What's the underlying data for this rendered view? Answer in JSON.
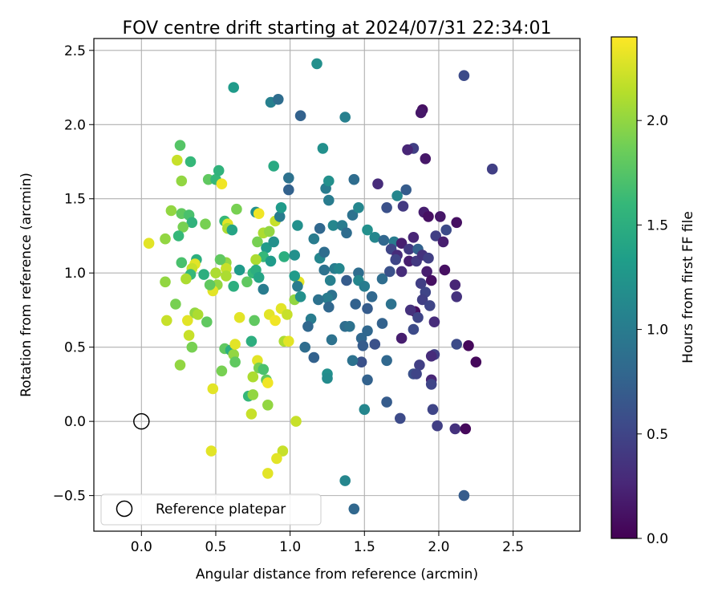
{
  "chart_data": {
    "type": "scatter",
    "title": "FOV centre drift starting at 2024/07/31 22:34:01",
    "xlabel": "Angular distance from reference (arcmin)",
    "ylabel": "Rotation from reference (arcmin)",
    "xlim": [
      -0.32,
      2.95
    ],
    "ylim": [
      -0.74,
      2.58
    ],
    "x_ticks": [
      0.0,
      0.5,
      1.0,
      1.5,
      2.0,
      2.5
    ],
    "x_tick_labels": [
      "0.0",
      "0.5",
      "1.0",
      "1.5",
      "2.0",
      "2.5"
    ],
    "y_ticks": [
      -0.5,
      0.0,
      0.5,
      1.0,
      1.5,
      2.0,
      2.5
    ],
    "y_tick_labels": [
      "−0.5",
      "0.0",
      "0.5",
      "1.0",
      "1.5",
      "2.0",
      "2.5"
    ],
    "grid": true,
    "legend": {
      "position": "lower-left",
      "entries": [
        {
          "label": "Reference platepar",
          "marker": "open-circle"
        }
      ]
    },
    "reference_point": {
      "x": 0.0,
      "y": 0.0
    },
    "colorbar": {
      "label": "Hours from first FF file",
      "colormap": "viridis",
      "range": [
        0.0,
        2.4
      ],
      "ticks": [
        0.0,
        0.5,
        1.0,
        1.5,
        2.0
      ],
      "tick_labels": [
        "0.0",
        "0.5",
        "1.0",
        "1.5",
        "2.0"
      ],
      "colors": [
        "#440154",
        "#482878",
        "#3e4989",
        "#31688e",
        "#26828e",
        "#1f9e89",
        "#35b779",
        "#6ece58",
        "#b5de2b",
        "#fde725"
      ]
    },
    "points": [
      [
        0.62,
        2.25,
        1.3
      ],
      [
        0.87,
        2.15,
        1.05
      ],
      [
        0.92,
        2.17,
        0.85
      ],
      [
        1.18,
        2.41,
        1.2
      ],
      [
        1.07,
        2.06,
        0.75
      ],
      [
        1.37,
        2.05,
        1.05
      ],
      [
        1.89,
        2.1,
        0.1
      ],
      [
        1.88,
        2.08,
        0.15
      ],
      [
        2.17,
        2.33,
        0.55
      ],
      [
        2.36,
        1.7,
        0.45
      ],
      [
        1.83,
        1.84,
        0.45
      ],
      [
        1.79,
        1.83,
        0.25
      ],
      [
        1.91,
        1.77,
        0.15
      ],
      [
        1.22,
        1.84,
        1.2
      ],
      [
        0.26,
        1.86,
        1.75
      ],
      [
        0.24,
        1.76,
        2.2
      ],
      [
        0.33,
        1.75,
        1.6
      ],
      [
        0.27,
        1.62,
        2.0
      ],
      [
        0.45,
        1.63,
        1.8
      ],
      [
        0.5,
        1.63,
        1.6
      ],
      [
        0.52,
        1.69,
        1.55
      ],
      [
        0.54,
        1.6,
        2.35
      ],
      [
        0.89,
        1.72,
        1.45
      ],
      [
        0.99,
        1.64,
        0.9
      ],
      [
        0.99,
        1.56,
        0.75
      ],
      [
        1.24,
        1.57,
        1.0
      ],
      [
        1.26,
        1.62,
        1.2
      ],
      [
        1.43,
        1.63,
        0.85
      ],
      [
        1.59,
        1.6,
        0.3
      ],
      [
        1.72,
        1.52,
        1.1
      ],
      [
        1.78,
        1.56,
        0.7
      ],
      [
        1.76,
        1.45,
        0.4
      ],
      [
        1.26,
        1.49,
        1.0
      ],
      [
        1.05,
        1.32,
        1.2
      ],
      [
        1.29,
        1.32,
        1.1
      ],
      [
        1.35,
        1.32,
        1.0
      ],
      [
        1.38,
        1.27,
        0.85
      ],
      [
        1.42,
        1.39,
        0.9
      ],
      [
        1.46,
        1.44,
        1.1
      ],
      [
        1.52,
        1.29,
        1.2
      ],
      [
        1.57,
        1.24,
        1.1
      ],
      [
        1.65,
        1.44,
        0.6
      ],
      [
        1.63,
        1.22,
        0.8
      ],
      [
        1.7,
        1.21,
        1.0
      ],
      [
        1.68,
        1.16,
        0.5
      ],
      [
        1.72,
        1.12,
        0.3
      ],
      [
        1.75,
        1.2,
        0.2
      ],
      [
        1.8,
        1.16,
        0.4
      ],
      [
        1.83,
        1.24,
        0.25
      ],
      [
        1.86,
        1.16,
        0.75
      ],
      [
        1.9,
        1.41,
        0.2
      ],
      [
        1.93,
        1.38,
        0.1
      ],
      [
        2.01,
        1.38,
        0.15
      ],
      [
        1.98,
        1.25,
        0.45
      ],
      [
        2.05,
        1.29,
        0.55
      ],
      [
        2.03,
        1.21,
        0.2
      ],
      [
        2.12,
        1.34,
        0.1
      ],
      [
        0.2,
        1.42,
        2.0
      ],
      [
        0.27,
        1.4,
        1.8
      ],
      [
        0.32,
        1.39,
        1.7
      ],
      [
        0.34,
        1.34,
        1.55
      ],
      [
        0.28,
        1.31,
        1.9
      ],
      [
        0.25,
        1.25,
        1.6
      ],
      [
        0.16,
        1.23,
        2.0
      ],
      [
        0.05,
        1.2,
        2.3
      ],
      [
        0.43,
        1.33,
        1.9
      ],
      [
        0.56,
        1.35,
        1.6
      ],
      [
        0.58,
        1.33,
        2.3
      ],
      [
        0.58,
        1.3,
        2.1
      ],
      [
        0.61,
        1.29,
        1.4
      ],
      [
        0.64,
        1.43,
        1.9
      ],
      [
        0.77,
        1.41,
        1.2
      ],
      [
        0.79,
        1.4,
        2.35
      ],
      [
        0.78,
        1.21,
        1.9
      ],
      [
        0.82,
        1.27,
        2.1
      ],
      [
        0.84,
        1.17,
        1.3
      ],
      [
        0.86,
        1.28,
        2.0
      ],
      [
        0.9,
        1.35,
        2.2
      ],
      [
        0.93,
        1.38,
        1.0
      ],
      [
        0.94,
        1.44,
        1.3
      ],
      [
        0.89,
        1.21,
        1.2
      ],
      [
        0.96,
        1.11,
        1.5
      ],
      [
        0.82,
        1.11,
        1.6
      ],
      [
        0.87,
        1.08,
        1.3
      ],
      [
        0.77,
        1.09,
        2.1
      ],
      [
        0.75,
        1.0,
        1.6
      ],
      [
        0.77,
        1.02,
        1.5
      ],
      [
        0.79,
        0.97,
        1.4
      ],
      [
        0.82,
        0.89,
        1.0
      ],
      [
        0.71,
        0.94,
        1.8
      ],
      [
        0.66,
        1.02,
        1.3
      ],
      [
        0.62,
        0.91,
        1.5
      ],
      [
        0.57,
        1.07,
        2.0
      ],
      [
        0.57,
        1.03,
        2.2
      ],
      [
        0.57,
        0.98,
        2.1
      ],
      [
        0.53,
        1.09,
        1.8
      ],
      [
        0.5,
        1.0,
        2.1
      ],
      [
        0.51,
        0.92,
        2.0
      ],
      [
        0.48,
        0.88,
        2.3
      ],
      [
        0.46,
        0.92,
        1.8
      ],
      [
        0.42,
        0.99,
        1.5
      ],
      [
        0.37,
        1.09,
        1.5
      ],
      [
        0.36,
        1.06,
        2.3
      ],
      [
        0.34,
        1.03,
        2.2
      ],
      [
        0.33,
        0.99,
        1.6
      ],
      [
        0.3,
        0.96,
        2.1
      ],
      [
        0.27,
        1.07,
        1.7
      ],
      [
        0.16,
        0.94,
        2.0
      ],
      [
        0.23,
        0.79,
        1.9
      ],
      [
        0.36,
        0.73,
        2.0
      ],
      [
        0.38,
        0.72,
        2.1
      ],
      [
        0.44,
        0.67,
        1.8
      ],
      [
        0.31,
        0.68,
        2.3
      ],
      [
        0.17,
        0.68,
        2.2
      ],
      [
        0.32,
        0.58,
        2.2
      ],
      [
        0.34,
        0.5,
        1.9
      ],
      [
        0.26,
        0.38,
        2.0
      ],
      [
        0.56,
        0.49,
        1.8
      ],
      [
        0.6,
        0.48,
        1.5
      ],
      [
        0.62,
        0.45,
        2.0
      ],
      [
        0.63,
        0.52,
        2.3
      ],
      [
        0.63,
        0.4,
        1.8
      ],
      [
        0.66,
        0.7,
        2.3
      ],
      [
        0.74,
        0.54,
        1.5
      ],
      [
        0.76,
        0.68,
        1.8
      ],
      [
        0.78,
        0.41,
        2.3
      ],
      [
        0.79,
        0.36,
        1.9
      ],
      [
        0.82,
        0.35,
        1.7
      ],
      [
        0.84,
        0.28,
        1.8
      ],
      [
        0.75,
        0.3,
        2.1
      ],
      [
        0.72,
        0.17,
        1.6
      ],
      [
        0.75,
        0.18,
        2.0
      ],
      [
        0.74,
        0.05,
        2.2
      ],
      [
        0.85,
        0.11,
        2.0
      ],
      [
        0.85,
        0.26,
        2.35
      ],
      [
        0.86,
        0.72,
        2.3
      ],
      [
        0.9,
        0.68,
        2.35
      ],
      [
        0.94,
        0.76,
        2.3
      ],
      [
        0.98,
        0.72,
        2.2
      ],
      [
        0.96,
        0.54,
        2.1
      ],
      [
        0.99,
        0.54,
        2.3
      ],
      [
        1.03,
        0.82,
        2.0
      ],
      [
        1.06,
        0.94,
        2.3
      ],
      [
        0.54,
        0.34,
        1.9
      ],
      [
        0.48,
        0.22,
        2.3
      ],
      [
        0.47,
        -0.2,
        2.3
      ],
      [
        0.95,
        -0.2,
        2.2
      ],
      [
        0.91,
        -0.25,
        2.3
      ],
      [
        0.85,
        -0.35,
        2.3
      ],
      [
        1.04,
        0.0,
        2.2
      ],
      [
        1.03,
        0.98,
        1.3
      ],
      [
        1.05,
        0.91,
        1.0
      ],
      [
        1.07,
        0.84,
        1.2
      ],
      [
        1.16,
        1.23,
        1.0
      ],
      [
        1.2,
        1.1,
        1.1
      ],
      [
        1.23,
        1.14,
        0.85
      ],
      [
        1.23,
        1.02,
        0.9
      ],
      [
        1.3,
        1.03,
        1.0
      ],
      [
        1.33,
        1.03,
        1.1
      ],
      [
        1.27,
        0.95,
        1.05
      ],
      [
        1.38,
        0.95,
        0.7
      ],
      [
        1.46,
        1.0,
        0.85
      ],
      [
        1.46,
        0.95,
        1.1
      ],
      [
        1.5,
        0.91,
        1.0
      ],
      [
        1.55,
        0.84,
        0.8
      ],
      [
        1.52,
        0.76,
        0.7
      ],
      [
        1.62,
        0.96,
        0.85
      ],
      [
        1.67,
        1.01,
        0.6
      ],
      [
        1.71,
        1.09,
        0.5
      ],
      [
        1.75,
        1.01,
        0.3
      ],
      [
        1.8,
        1.08,
        0.2
      ],
      [
        1.85,
        1.08,
        0.4
      ],
      [
        1.89,
        1.12,
        0.35
      ],
      [
        1.93,
        1.1,
        0.45
      ],
      [
        1.92,
        1.01,
        0.2
      ],
      [
        1.88,
        0.93,
        0.45
      ],
      [
        1.91,
        0.87,
        0.5
      ],
      [
        1.95,
        0.95,
        0.1
      ],
      [
        1.89,
        0.82,
        0.45
      ],
      [
        1.94,
        0.78,
        0.5
      ],
      [
        2.04,
        1.02,
        0.1
      ],
      [
        2.11,
        0.92,
        0.25
      ],
      [
        2.12,
        0.84,
        0.35
      ],
      [
        1.84,
        0.74,
        0.1
      ],
      [
        1.81,
        0.75,
        0.35
      ],
      [
        1.83,
        0.62,
        0.55
      ],
      [
        1.86,
        0.7,
        0.5
      ],
      [
        1.97,
        0.67,
        0.3
      ],
      [
        1.97,
        0.45,
        0.45
      ],
      [
        1.95,
        0.44,
        0.3
      ],
      [
        1.95,
        0.28,
        0.25
      ],
      [
        1.95,
        0.25,
        0.5
      ],
      [
        1.87,
        0.38,
        0.45
      ],
      [
        1.83,
        0.32,
        0.6
      ],
      [
        1.85,
        0.32,
        0.5
      ],
      [
        1.75,
        0.56,
        0.2
      ],
      [
        1.68,
        0.79,
        0.9
      ],
      [
        1.62,
        0.66,
        0.75
      ],
      [
        1.52,
        0.61,
        0.8
      ],
      [
        1.57,
        0.52,
        0.6
      ],
      [
        1.48,
        0.56,
        0.8
      ],
      [
        1.49,
        0.51,
        0.7
      ],
      [
        1.48,
        0.4,
        0.6
      ],
      [
        1.42,
        0.41,
        0.9
      ],
      [
        1.52,
        0.28,
        0.75
      ],
      [
        1.65,
        0.41,
        0.8
      ],
      [
        1.44,
        0.79,
        0.75
      ],
      [
        1.37,
        0.64,
        0.85
      ],
      [
        1.4,
        0.64,
        0.9
      ],
      [
        1.28,
        0.85,
        0.9
      ],
      [
        1.25,
        0.83,
        1.0
      ],
      [
        1.19,
        0.82,
        0.9
      ],
      [
        1.14,
        0.69,
        1.0
      ],
      [
        1.12,
        0.64,
        0.8
      ],
      [
        1.28,
        0.55,
        0.9
      ],
      [
        1.26,
        0.77,
        0.8
      ],
      [
        1.16,
        0.43,
        0.75
      ],
      [
        1.1,
        0.5,
        0.85
      ],
      [
        1.25,
        0.32,
        1.2
      ],
      [
        1.25,
        0.29,
        1.15
      ],
      [
        1.2,
        1.3,
        0.8
      ],
      [
        1.03,
        1.12,
        1.2
      ],
      [
        1.5,
        0.08,
        1.1
      ],
      [
        1.65,
        0.13,
        0.7
      ],
      [
        1.74,
        0.02,
        0.55
      ],
      [
        1.96,
        0.08,
        0.5
      ],
      [
        1.99,
        -0.03,
        0.45
      ],
      [
        2.11,
        -0.05,
        0.35
      ],
      [
        2.18,
        -0.05,
        0.05
      ],
      [
        2.12,
        0.52,
        0.55
      ],
      [
        2.2,
        0.51,
        0.05
      ],
      [
        2.25,
        0.4,
        0.05
      ],
      [
        1.37,
        -0.4,
        1.1
      ],
      [
        1.43,
        -0.59,
        0.8
      ],
      [
        2.17,
        -0.5,
        0.7
      ]
    ]
  }
}
